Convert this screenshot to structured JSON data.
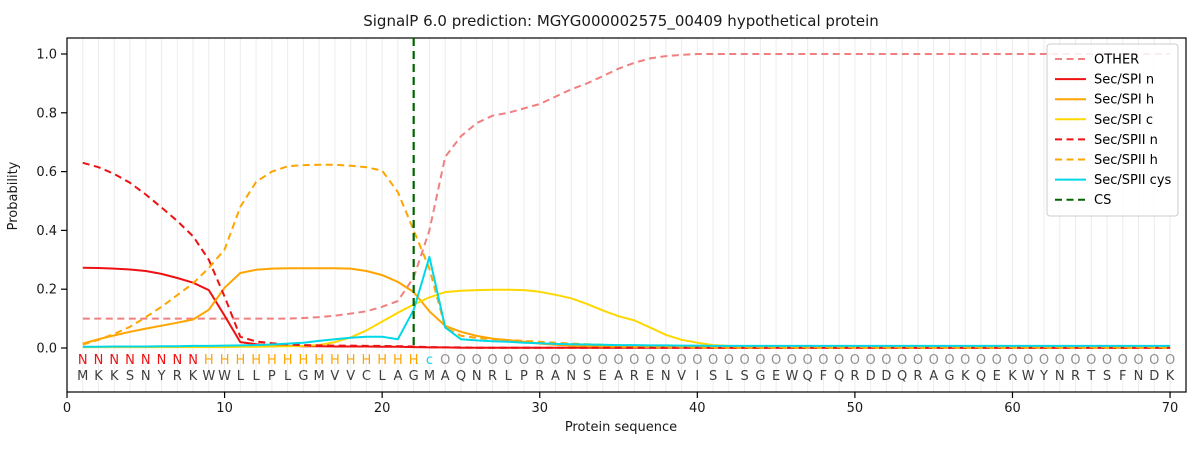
{
  "figure": {
    "title": "SignalP 6.0 prediction: MGYG000002575_00409 hypothetical protein",
    "xlabel": "Protein sequence",
    "ylabel": "Probability"
  },
  "chart_data": {
    "type": "line",
    "title": "SignalP 6.0 prediction: MGYG000002575_00409 hypothetical protein",
    "xlabel": "Protein sequence",
    "ylabel": "Probability",
    "xlim": [
      0,
      71
    ],
    "ylim": [
      -0.15,
      1.055
    ],
    "x_ticks": [
      0,
      10,
      20,
      30,
      40,
      50,
      60,
      70
    ],
    "y_ticks": [
      0.0,
      0.2,
      0.4,
      0.6,
      0.8,
      1.0
    ],
    "grid": "light vertical gridline at every residue position 1-70",
    "legend_position": "upper right",
    "x_start": 1,
    "series": [
      {
        "name": "OTHER",
        "color": "#f08080",
        "style": "dashed",
        "values": [
          0.1,
          0.1,
          0.1,
          0.1,
          0.1,
          0.1,
          0.1,
          0.1,
          0.1,
          0.1,
          0.1,
          0.1,
          0.1,
          0.1,
          0.102,
          0.105,
          0.11,
          0.117,
          0.125,
          0.14,
          0.16,
          0.24,
          0.4,
          0.65,
          0.72,
          0.765,
          0.79,
          0.8,
          0.815,
          0.83,
          0.855,
          0.88,
          0.9,
          0.925,
          0.95,
          0.97,
          0.985,
          0.993,
          0.997,
          1.0,
          1.0,
          1.0,
          1.0,
          1.0,
          1.0,
          1.0,
          1.0,
          1.0,
          1.0,
          1.0,
          1.0,
          1.0,
          1.0,
          1.0,
          1.0,
          1.0,
          1.0,
          1.0,
          1.0,
          1.0,
          1.0,
          1.0,
          1.0,
          1.0,
          1.0,
          1.0,
          1.0,
          1.0,
          1.0,
          1.0
        ]
      },
      {
        "name": "Sec/SPI n",
        "color": "#ee1111",
        "style": "solid",
        "values": [
          0.273,
          0.272,
          0.27,
          0.267,
          0.262,
          0.252,
          0.238,
          0.222,
          0.197,
          0.11,
          0.02,
          0.013,
          0.009,
          0.007,
          0.006,
          0.006,
          0.005,
          0.005,
          0.005,
          0.004,
          0.004,
          0.003,
          0.002,
          0.002,
          0.001,
          0.001,
          0.001,
          0.001,
          0.001,
          0.001,
          0.001,
          0.001,
          0.001,
          0.001,
          0.001,
          0.001,
          0.001,
          0.001,
          0.001,
          0.001,
          0.001,
          0.001,
          0.001,
          0.001,
          0.001,
          0.001,
          0.001,
          0.001,
          0.001,
          0.001,
          0.001,
          0.001,
          0.001,
          0.001,
          0.001,
          0.001,
          0.001,
          0.001,
          0.001,
          0.001,
          0.001,
          0.001,
          0.001,
          0.001,
          0.001,
          0.001,
          0.001,
          0.001,
          0.001,
          0.001
        ]
      },
      {
        "name": "Sec/SPI h",
        "color": "#ffa500",
        "style": "solid",
        "values": [
          0.015,
          0.03,
          0.043,
          0.055,
          0.066,
          0.076,
          0.086,
          0.097,
          0.13,
          0.205,
          0.255,
          0.266,
          0.27,
          0.271,
          0.271,
          0.271,
          0.271,
          0.27,
          0.262,
          0.248,
          0.225,
          0.19,
          0.125,
          0.075,
          0.055,
          0.041,
          0.032,
          0.027,
          0.021,
          0.015,
          0.011,
          0.008,
          0.006,
          0.005,
          0.004,
          0.003,
          0.003,
          0.002,
          0.002,
          0.002,
          0.001,
          0.001,
          0.001,
          0.001,
          0.001,
          0.001,
          0.001,
          0.001,
          0.001,
          0.001,
          0.001,
          0.001,
          0.001,
          0.001,
          0.001,
          0.001,
          0.001,
          0.001,
          0.001,
          0.001,
          0.001,
          0.001,
          0.001,
          0.001,
          0.001,
          0.001,
          0.001,
          0.001,
          0.001,
          0.001
        ]
      },
      {
        "name": "Sec/SPI c",
        "color": "#ffd700",
        "style": "solid",
        "values": [
          0.003,
          0.003,
          0.003,
          0.003,
          0.003,
          0.003,
          0.003,
          0.003,
          0.003,
          0.003,
          0.004,
          0.004,
          0.005,
          0.006,
          0.007,
          0.01,
          0.02,
          0.036,
          0.06,
          0.09,
          0.12,
          0.148,
          0.172,
          0.19,
          0.195,
          0.197,
          0.198,
          0.198,
          0.197,
          0.191,
          0.181,
          0.169,
          0.15,
          0.128,
          0.108,
          0.094,
          0.07,
          0.045,
          0.028,
          0.018,
          0.01,
          0.007,
          0.005,
          0.004,
          0.003,
          0.003,
          0.002,
          0.002,
          0.002,
          0.002,
          0.002,
          0.002,
          0.002,
          0.002,
          0.002,
          0.002,
          0.002,
          0.002,
          0.002,
          0.002,
          0.002,
          0.002,
          0.002,
          0.002,
          0.002,
          0.002,
          0.002,
          0.002,
          0.002,
          0.002
        ]
      },
      {
        "name": "Sec/SPII n",
        "color": "#ee1111",
        "style": "dashed",
        "values": [
          0.63,
          0.615,
          0.592,
          0.562,
          0.522,
          0.478,
          0.432,
          0.38,
          0.3,
          0.175,
          0.038,
          0.022,
          0.016,
          0.012,
          0.01,
          0.009,
          0.008,
          0.008,
          0.007,
          0.007,
          0.006,
          0.005,
          0.003,
          0.002,
          0.002,
          0.001,
          0.001,
          0.001,
          0.001,
          0.001,
          0.001,
          0.001,
          0.001,
          0.001,
          0.001,
          0.001,
          0.001,
          0.001,
          0.001,
          0.001,
          0.001,
          0.001,
          0.001,
          0.001,
          0.001,
          0.001,
          0.001,
          0.001,
          0.001,
          0.001,
          0.001,
          0.001,
          0.001,
          0.001,
          0.001,
          0.001,
          0.001,
          0.001,
          0.001,
          0.001,
          0.001,
          0.001,
          0.001,
          0.001,
          0.001,
          0.001,
          0.001,
          0.001,
          0.001,
          0.001
        ]
      },
      {
        "name": "Sec/SPII h",
        "color": "#ffa500",
        "style": "dashed",
        "values": [
          0.012,
          0.028,
          0.048,
          0.072,
          0.105,
          0.14,
          0.18,
          0.22,
          0.272,
          0.335,
          0.48,
          0.565,
          0.6,
          0.618,
          0.622,
          0.623,
          0.623,
          0.62,
          0.615,
          0.603,
          0.53,
          0.4,
          0.27,
          0.07,
          0.042,
          0.034,
          0.03,
          0.027,
          0.024,
          0.021,
          0.018,
          0.015,
          0.013,
          0.011,
          0.009,
          0.008,
          0.007,
          0.006,
          0.005,
          0.005,
          0.004,
          0.004,
          0.003,
          0.003,
          0.003,
          0.003,
          0.003,
          0.003,
          0.003,
          0.003,
          0.003,
          0.003,
          0.003,
          0.003,
          0.003,
          0.003,
          0.003,
          0.003,
          0.003,
          0.003,
          0.003,
          0.003,
          0.003,
          0.003,
          0.003,
          0.003,
          0.003,
          0.003,
          0.003,
          0.003
        ]
      },
      {
        "name": "Sec/SPII cys",
        "color": "#00d8e8",
        "style": "solid",
        "values": [
          0.004,
          0.004,
          0.005,
          0.005,
          0.005,
          0.006,
          0.006,
          0.007,
          0.007,
          0.008,
          0.009,
          0.01,
          0.012,
          0.015,
          0.018,
          0.024,
          0.03,
          0.035,
          0.038,
          0.038,
          0.03,
          0.13,
          0.31,
          0.07,
          0.03,
          0.026,
          0.023,
          0.021,
          0.018,
          0.016,
          0.014,
          0.013,
          0.012,
          0.011,
          0.01,
          0.01,
          0.009,
          0.009,
          0.008,
          0.008,
          0.007,
          0.007,
          0.007,
          0.007,
          0.007,
          0.007,
          0.007,
          0.007,
          0.007,
          0.007,
          0.007,
          0.007,
          0.007,
          0.007,
          0.007,
          0.007,
          0.007,
          0.007,
          0.007,
          0.007,
          0.007,
          0.007,
          0.007,
          0.007,
          0.007,
          0.007,
          0.007,
          0.007,
          0.007,
          0.007
        ]
      }
    ],
    "cs_marker": {
      "label": "CS",
      "position": 22,
      "color": "#006400",
      "style": "dashed-vertical"
    },
    "sequence": {
      "residues": "MKKSNYRKWWLLPLGMVVCLAGMAQNRLPRANSEARENVISLSGEWQFQRDDQRAGKQEKWYNRTSFNDK",
      "annotation": "NNNNNNNNHHHHHHHHHHHHHHcOOOOOOOOOOOOOOOOOOOOOOOOOOOOOOOOOOOOOOOOOOOOOOO",
      "annotation_colors": {
        "N": "#ee1111",
        "H": "#ffa500",
        "c": "#00d8e8",
        "O": "#909090"
      },
      "residue_color": "#3d3d3d"
    },
    "style_colors": {
      "frame": "#000000",
      "grid": "#ececec",
      "legend_border": "#cccccc",
      "tick_text": "#1a1a1a"
    }
  }
}
